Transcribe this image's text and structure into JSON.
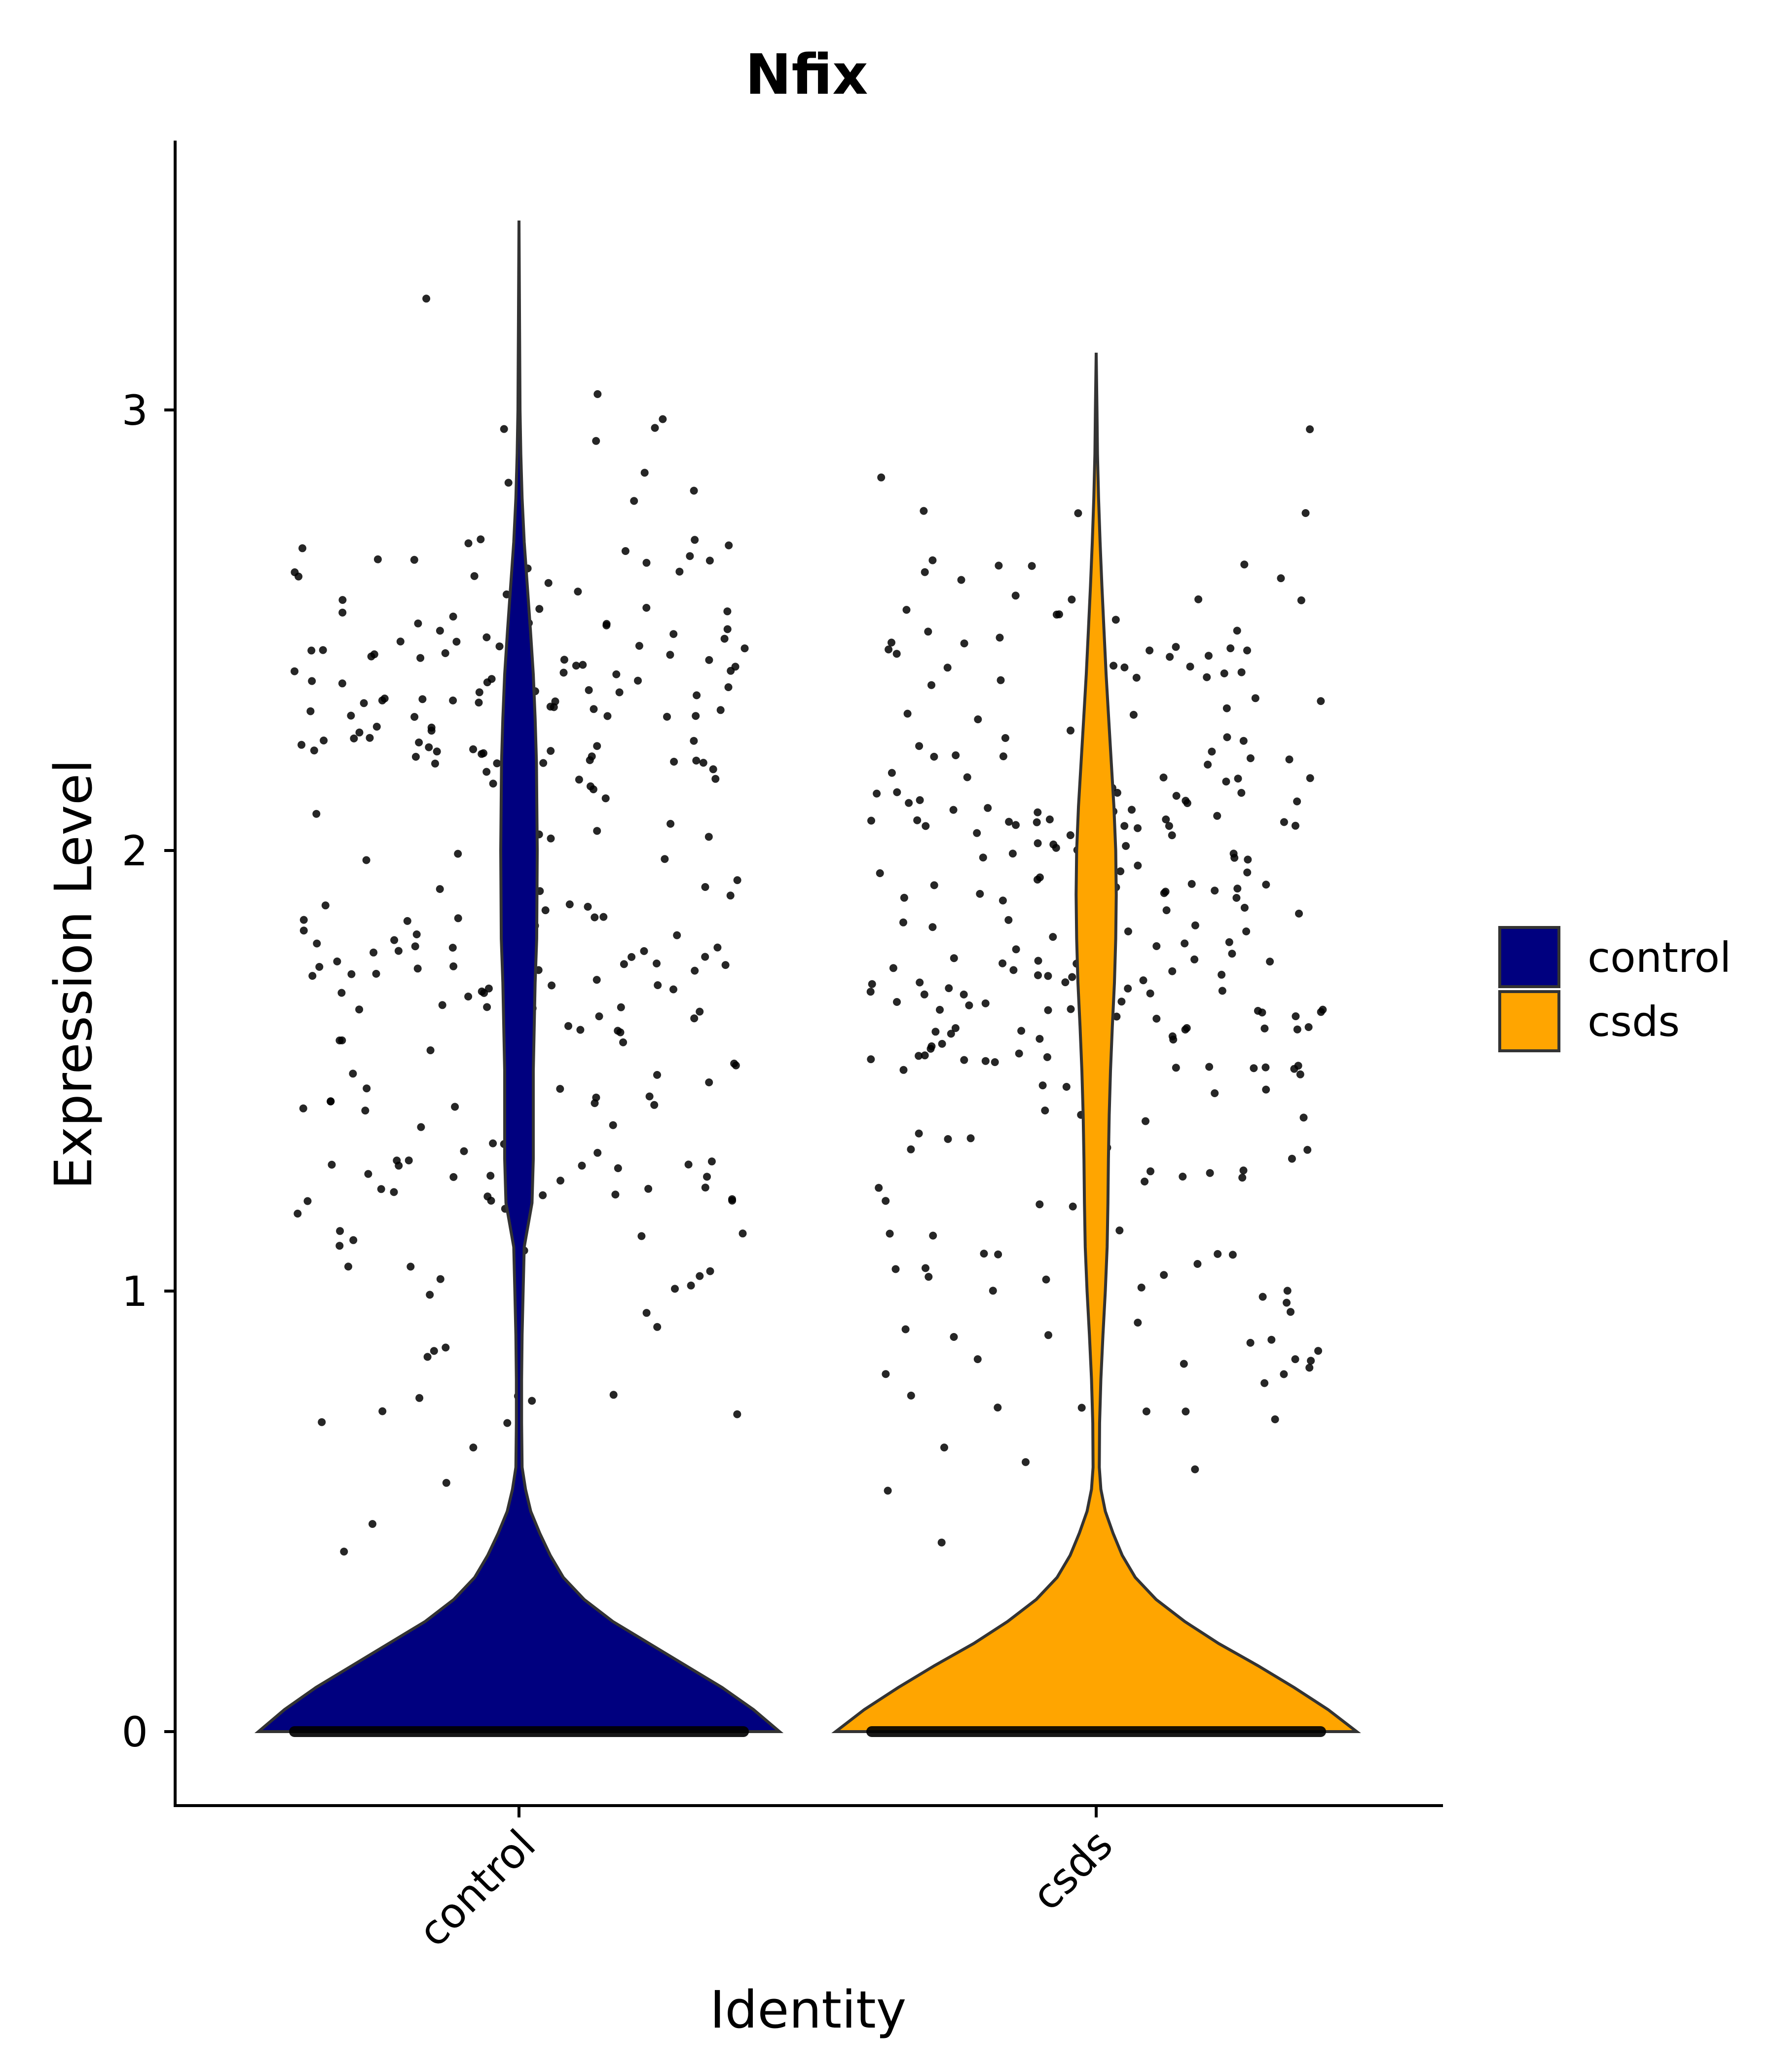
{
  "chart_data": {
    "type": "violin",
    "title": "Nfix",
    "xlabel": "Identity",
    "ylabel": "Expression Level",
    "ylim": [
      -0.17,
      3.6
    ],
    "yticks": [
      0,
      1,
      2,
      3
    ],
    "categories": [
      "control",
      "csds"
    ],
    "legend": {
      "placement": "right",
      "entries": [
        {
          "label": "control",
          "color": "#00007F"
        },
        {
          "label": "csds",
          "color": "#FFA500"
        }
      ]
    },
    "series": [
      {
        "name": "control",
        "color": "#00007F",
        "max": 3.43,
        "density": [
          [
            0,
            1.0
          ],
          [
            0.05,
            0.9
          ],
          [
            0.1,
            0.78
          ],
          [
            0.15,
            0.64
          ],
          [
            0.2,
            0.5
          ],
          [
            0.25,
            0.36
          ],
          [
            0.3,
            0.25
          ],
          [
            0.35,
            0.17
          ],
          [
            0.4,
            0.12
          ],
          [
            0.45,
            0.08
          ],
          [
            0.5,
            0.045
          ],
          [
            0.55,
            0.025
          ],
          [
            0.6,
            0.012
          ],
          [
            0.7,
            0.01
          ],
          [
            0.8,
            0.01
          ],
          [
            0.9,
            0.012
          ],
          [
            1.0,
            0.016
          ],
          [
            1.1,
            0.02
          ],
          [
            1.2,
            0.05
          ],
          [
            1.3,
            0.055
          ],
          [
            1.5,
            0.055
          ],
          [
            1.7,
            0.062
          ],
          [
            1.8,
            0.068
          ],
          [
            2.0,
            0.07
          ],
          [
            2.2,
            0.067
          ],
          [
            2.3,
            0.062
          ],
          [
            2.4,
            0.055
          ],
          [
            2.5,
            0.044
          ],
          [
            2.6,
            0.032
          ],
          [
            2.7,
            0.02
          ],
          [
            2.8,
            0.012
          ],
          [
            2.9,
            0.007
          ],
          [
            3.0,
            0.004
          ],
          [
            3.2,
            0.002
          ],
          [
            3.43,
            0.0
          ]
        ]
      },
      {
        "name": "csds",
        "color": "#FFA500",
        "max": 3.13,
        "density": [
          [
            0,
            1.0
          ],
          [
            0.05,
            0.89
          ],
          [
            0.1,
            0.76
          ],
          [
            0.15,
            0.62
          ],
          [
            0.2,
            0.47
          ],
          [
            0.25,
            0.34
          ],
          [
            0.3,
            0.23
          ],
          [
            0.35,
            0.15
          ],
          [
            0.4,
            0.1
          ],
          [
            0.45,
            0.065
          ],
          [
            0.5,
            0.035
          ],
          [
            0.55,
            0.018
          ],
          [
            0.6,
            0.012
          ],
          [
            0.7,
            0.013
          ],
          [
            0.8,
            0.018
          ],
          [
            0.9,
            0.026
          ],
          [
            1.0,
            0.035
          ],
          [
            1.1,
            0.042
          ],
          [
            1.2,
            0.045
          ],
          [
            1.3,
            0.047
          ],
          [
            1.4,
            0.05
          ],
          [
            1.5,
            0.055
          ],
          [
            1.6,
            0.062
          ],
          [
            1.7,
            0.07
          ],
          [
            1.8,
            0.075
          ],
          [
            1.9,
            0.077
          ],
          [
            2.0,
            0.075
          ],
          [
            2.1,
            0.068
          ],
          [
            2.2,
            0.058
          ],
          [
            2.3,
            0.048
          ],
          [
            2.4,
            0.038
          ],
          [
            2.5,
            0.03
          ],
          [
            2.6,
            0.022
          ],
          [
            2.7,
            0.015
          ],
          [
            2.8,
            0.009
          ],
          [
            2.9,
            0.005
          ],
          [
            3.0,
            0.003
          ],
          [
            3.13,
            0.0
          ]
        ]
      }
    ]
  }
}
